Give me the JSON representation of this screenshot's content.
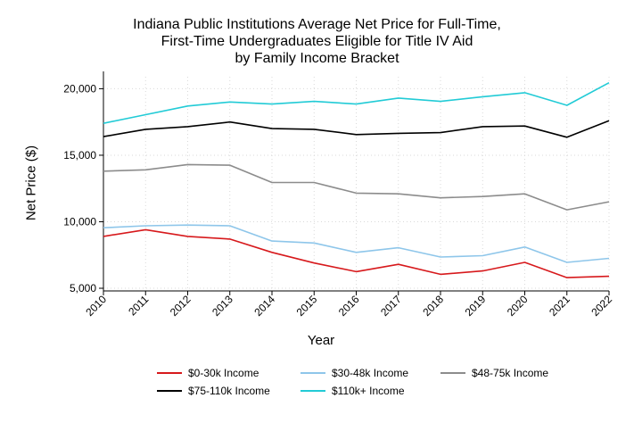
{
  "chart_data": {
    "type": "line",
    "title_lines": [
      "Indiana Public Institutions Average Net Price for Full-Time,",
      "First-Time Undergraduates Eligible for Title IV Aid",
      "by Family Income Bracket"
    ],
    "xlabel": "Year",
    "ylabel": "Net Price ($)",
    "x": [
      "2010",
      "2011",
      "2012",
      "2013",
      "2014",
      "2015",
      "2016",
      "2017",
      "2018",
      "2019",
      "2020",
      "2021",
      "2022"
    ],
    "yticks": [
      5000,
      10000,
      15000,
      20000
    ],
    "ytick_labels": [
      "5,000",
      "10,000",
      "15,000",
      "20,000"
    ],
    "ylim": [
      4800,
      20900
    ],
    "grid": true,
    "legend_position": "bottom",
    "series": [
      {
        "name": "$0-30k Income",
        "color": "#d7191c",
        "values": [
          8900,
          9400,
          8900,
          8700,
          7700,
          6900,
          6250,
          6800,
          6050,
          6300,
          6950,
          5800,
          5900
        ]
      },
      {
        "name": "$30-48k Income",
        "color": "#8ec6ea",
        "values": [
          9550,
          9700,
          9750,
          9700,
          8550,
          8400,
          7700,
          8050,
          7350,
          7450,
          8100,
          6950,
          7250
        ]
      },
      {
        "name": "$48-75k Income",
        "color": "#8c8c8c",
        "values": [
          13800,
          13900,
          14300,
          14250,
          12950,
          12950,
          12150,
          12100,
          11800,
          11900,
          12100,
          10900,
          11500
        ]
      },
      {
        "name": "$75-110k Income",
        "color": "#000000",
        "values": [
          16400,
          16950,
          17150,
          17500,
          17000,
          16950,
          16550,
          16650,
          16700,
          17150,
          17200,
          16350,
          17600
        ]
      },
      {
        "name": "$110k+ Income",
        "color": "#22cbd6",
        "values": [
          17400,
          18050,
          18700,
          19000,
          18850,
          19050,
          18850,
          19300,
          19050,
          19400,
          19700,
          18750,
          20450
        ]
      }
    ]
  }
}
